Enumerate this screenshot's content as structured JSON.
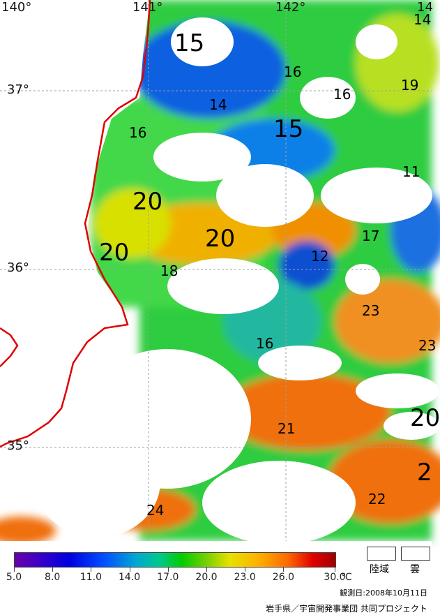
{
  "map": {
    "lon_labels": [
      "140°",
      "141°",
      "142°",
      "14"
    ],
    "lat_labels": [
      "37°",
      "36°",
      "35°"
    ],
    "isotherm_labels": [
      "15",
      "16",
      "14",
      "16",
      "19",
      "14",
      "15",
      "16",
      "11",
      "20",
      "20",
      "20",
      "18",
      "17",
      "12",
      "23",
      "23",
      "16",
      "21",
      "20",
      "2",
      "22",
      "24"
    ]
  },
  "legend": {
    "unit": "℃",
    "ticks": [
      "5.0",
      "8.0",
      "11.0",
      "14.0",
      "17.0",
      "20.0",
      "23.0",
      "26.0",
      "30.0"
    ],
    "land_label": "陸域",
    "cloud_label": "雲",
    "observation_date": "観測日:2008年10月11日",
    "credit": "岩手県／宇宙開発事業団 共同プロジェクト"
  },
  "colors": {
    "coastline": "#e00000",
    "grid": "#a0a0a0",
    "land": "#ffffff",
    "cloud": "#ffffff"
  }
}
